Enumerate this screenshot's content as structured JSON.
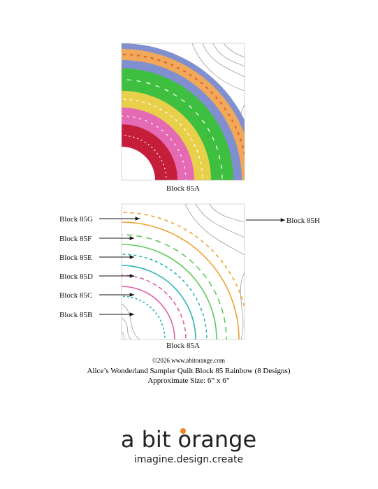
{
  "top_block": {
    "caption": "Block 85A"
  },
  "bottom_block": {
    "caption": "Block 85A",
    "labels": [
      "Block 85G",
      "Block 85F",
      "Block 85E",
      "Block 85D",
      "Block 85C",
      "Block 85B",
      "Block 85H"
    ]
  },
  "footer": {
    "copyright": "©2026 www.abitorange.com",
    "title": "Alice’s Wonderland Sampler Quilt Block 85 Rainbow (8 Designs)",
    "size": "Approximate Size: 6” x 6”"
  },
  "logo": {
    "name": "a bit orange",
    "tagline": "imagine.design.create"
  }
}
